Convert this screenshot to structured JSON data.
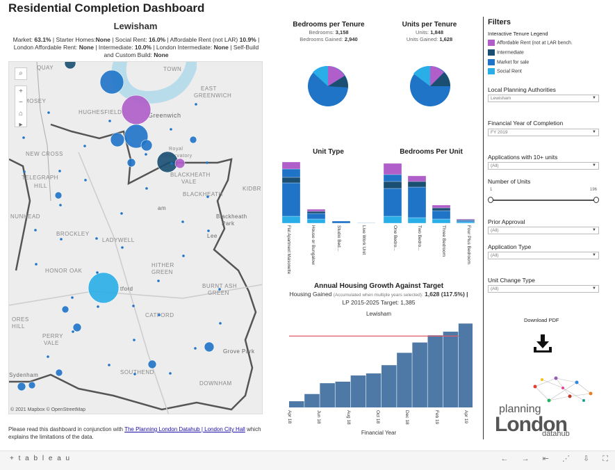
{
  "header": {
    "title": "Residential Completion Dashboard",
    "area": "Lewisham"
  },
  "summary": {
    "market_label": "Market:",
    "market_value": "63.1%",
    "starter_label": "| Starter Homes:",
    "starter_value": "None",
    "social_label": "| Social Rent:",
    "social_value": "16.0%",
    "afford_label": "| Affordable Rent (not LAR)",
    "afford_value": "10.9%",
    "lar_label": "London Affordable Rent:",
    "lar_value": "None",
    "inter_label": "| Intermediate:",
    "inter_value": "10.0%",
    "li_label": "| London Intermediate:",
    "li_value": "None",
    "self_label": "| Self-Build and Custom Build:",
    "self_value": "None"
  },
  "map": {
    "labels": [
      "QUAY",
      "TOWN",
      "MOSEY",
      "EAST",
      "GREENWICH",
      "Greenwich",
      "HUGHESFIELD",
      "Royal",
      "Observatory",
      "NEW CROSS",
      "BLACKHEATH",
      "VALE",
      "TELEGRAPH",
      "HILL",
      "BLACKHEATH",
      "KIDBR",
      "NUNHEAD",
      "BROCKLEY",
      "Blackheath",
      "Park",
      "Lee",
      "LADYWELL",
      "HONOR OAK",
      "HITHER",
      "GREEN",
      "BURNT ASH",
      "GREEN",
      "CATFORD",
      "ORES",
      "HILL",
      "PERRY",
      "VALE",
      "SOUTHEND",
      "Grove Park",
      "Sydenham",
      "DOWNHAM",
      "tford",
      "am"
    ],
    "attribution": "© 2021 Mapbox © OpenStreetMap"
  },
  "footer": {
    "note_prefix": "Please read this dashboard in conjunction with",
    "link_text": "The Planning London Datahub | London City Hall",
    "note_suffix": "which explains the limitations of the data."
  },
  "bedrooms_tenure": {
    "title": "Bedrooms per Tenure",
    "line1_label": "Bedrooms:",
    "line1_value": "3,158",
    "line2_label": "Bedrooms Gained:",
    "line2_value": "2,940"
  },
  "units_tenure": {
    "title": "Units per Tenure",
    "line1_label": "Units:",
    "line1_value": "1,848",
    "line2_label": "Units Gained:",
    "line2_value": "1,628"
  },
  "unit_type": {
    "title": "Unit Type",
    "categories": [
      "Flat Apartment Maisonette",
      "House or Bungalow",
      "Studio Bed...",
      "Live Work Unit"
    ]
  },
  "bedrooms_unit": {
    "title": "Bedrooms Per Unit",
    "categories": [
      "One Bedro...",
      "Two Bedro...",
      "Three Bedroom",
      "Four Plus Bedroom"
    ]
  },
  "growth": {
    "title": "Annual Housing Growth Against Target",
    "sub_prefix": "Housing Gained",
    "sub_small": "(Accumulated when multiple years selected):",
    "sub_value": "1,628 (117.5%) |",
    "target": "LP 2015-2025 Target: 1,385",
    "chart_label": "Lewisham",
    "xlabel": "Financial Year",
    "ticks": [
      "Apr 18",
      "Jun 18",
      "Aug 18",
      "Oct 18",
      "Dec 18",
      "Feb 19",
      "Apr 19"
    ]
  },
  "chart_data": [
    {
      "type": "bar",
      "title": "Annual Housing Growth Against Target",
      "xlabel": "Financial Year",
      "categories": [
        "Apr 18",
        "May 18",
        "Jun 18",
        "Jul 18",
        "Aug 18",
        "Sep 18",
        "Oct 18",
        "Nov 18",
        "Dec 18",
        "Jan 19",
        "Feb 19",
        "Mar 19"
      ],
      "values": [
        120,
        260,
        470,
        500,
        620,
        660,
        820,
        1060,
        1260,
        1400,
        1470,
        1628
      ],
      "target": 1385
    }
  ],
  "filters": {
    "title": "Filters",
    "legend_title": "Interactive Tenure Legend",
    "legend": [
      {
        "label": "Affordable Rent (not at LAR bench.",
        "color": "#b05ec9"
      },
      {
        "label": "Intermediate",
        "color": "#1a4f72"
      },
      {
        "label": "Market for sale",
        "color": "#1f74c8"
      },
      {
        "label": "Social Rent",
        "color": "#29aee8"
      }
    ],
    "lpa_label": "Local Planning Authorities",
    "lpa_value": "Lewisham",
    "fy_label": "Financial Year of Completion",
    "fy_value": "FY 2019",
    "app10_label": "Applications with 10+ units",
    "app10_value": "(All)",
    "units_label": "Number of Units",
    "units_min": "1",
    "units_max": "196",
    "prior_label": "Prior Approval",
    "prior_value": "(All)",
    "apptype_label": "Application Type",
    "apptype_value": "(All)",
    "change_label": "Unit Change Type",
    "change_value": "(All)"
  },
  "download": {
    "label": "Download PDF"
  },
  "logo": {
    "line1": "planning",
    "line2": "London",
    "line3": "datahub"
  },
  "bottom": {
    "brand": "+ t a b l e a u"
  }
}
